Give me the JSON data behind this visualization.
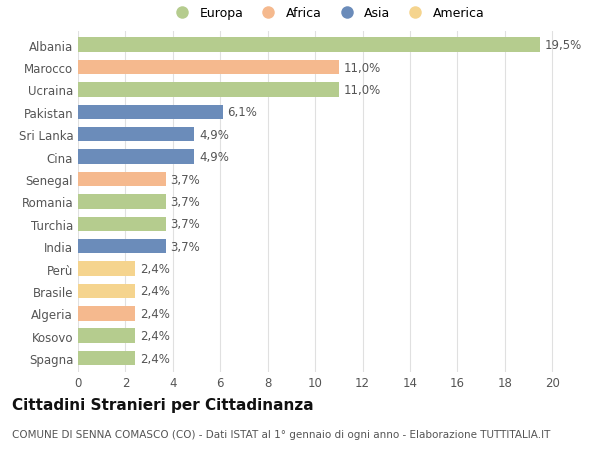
{
  "categories": [
    "Albania",
    "Marocco",
    "Ucraina",
    "Pakistan",
    "Sri Lanka",
    "Cina",
    "Senegal",
    "Romania",
    "Turchia",
    "India",
    "Perù",
    "Brasile",
    "Algeria",
    "Kosovo",
    "Spagna"
  ],
  "values": [
    19.5,
    11.0,
    11.0,
    6.1,
    4.9,
    4.9,
    3.7,
    3.7,
    3.7,
    3.7,
    2.4,
    2.4,
    2.4,
    2.4,
    2.4
  ],
  "labels": [
    "19,5%",
    "11,0%",
    "11,0%",
    "6,1%",
    "4,9%",
    "4,9%",
    "3,7%",
    "3,7%",
    "3,7%",
    "3,7%",
    "2,4%",
    "2,4%",
    "2,4%",
    "2,4%",
    "2,4%"
  ],
  "continents": [
    "Europa",
    "Africa",
    "Europa",
    "Asia",
    "Asia",
    "Asia",
    "Africa",
    "Europa",
    "Europa",
    "Asia",
    "America",
    "America",
    "Africa",
    "Europa",
    "Europa"
  ],
  "colors": {
    "Europa": "#b5cc8e",
    "Africa": "#f5b98e",
    "Asia": "#6b8cba",
    "America": "#f5d48e"
  },
  "xlim": [
    0,
    21
  ],
  "xticks": [
    0,
    2,
    4,
    6,
    8,
    10,
    12,
    14,
    16,
    18,
    20
  ],
  "title": "Cittadini Stranieri per Cittadinanza",
  "subtitle": "COMUNE DI SENNA COMASCO (CO) - Dati ISTAT al 1° gennaio di ogni anno - Elaborazione TUTTITALIA.IT",
  "background_color": "#ffffff",
  "grid_color": "#e0e0e0",
  "bar_height": 0.65,
  "label_fontsize": 8.5,
  "tick_fontsize": 8.5,
  "title_fontsize": 11,
  "subtitle_fontsize": 7.5,
  "legend_order": [
    "Europa",
    "Africa",
    "Asia",
    "America"
  ]
}
